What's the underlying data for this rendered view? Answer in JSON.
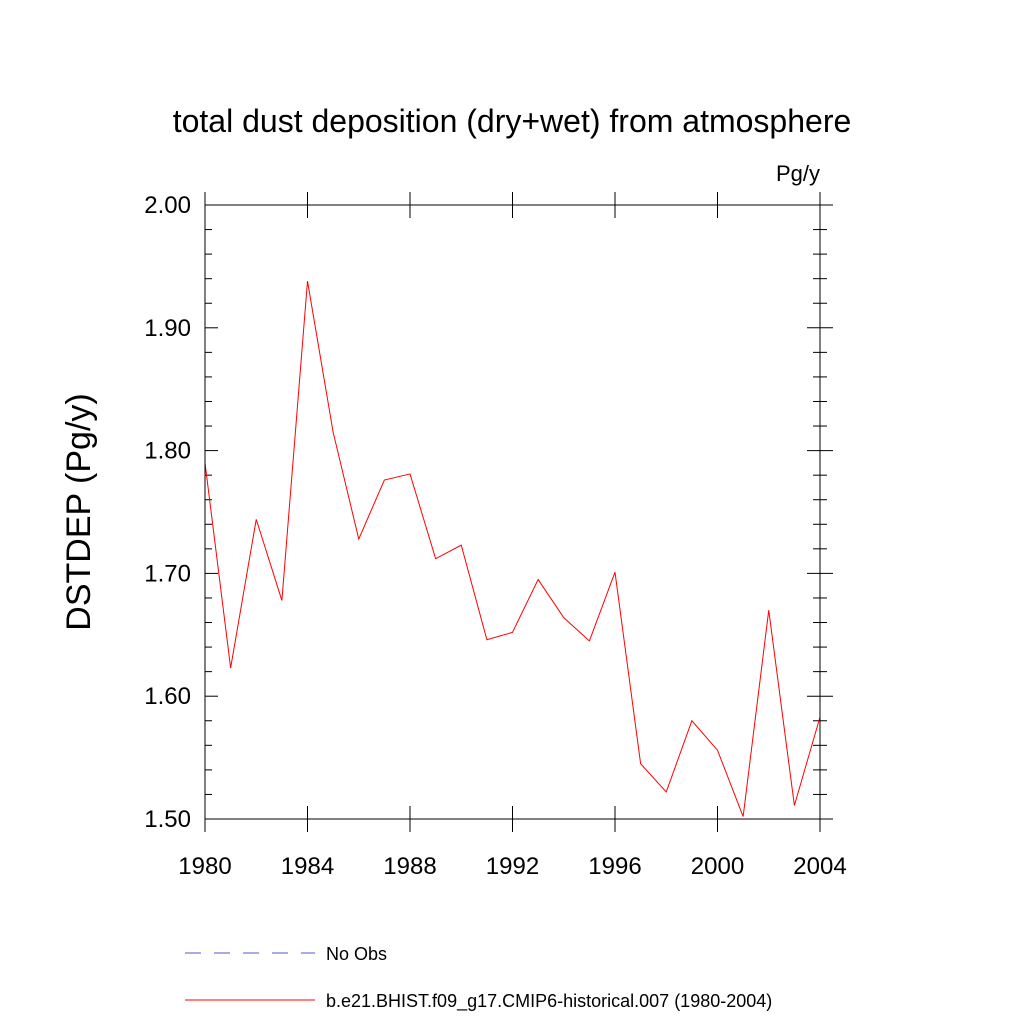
{
  "chart_data": {
    "type": "line",
    "title": "total dust deposition (dry+wet) from atmosphere",
    "units_label": "Pg/y",
    "xlabel": "",
    "ylabel": "DSTDEP  (Pg/y)",
    "xlim": [
      1980,
      2004
    ],
    "ylim": [
      1.5,
      2.0
    ],
    "x_ticks": [
      1980,
      1984,
      1988,
      1992,
      1996,
      2000,
      2004
    ],
    "x_tick_labels": [
      "1980",
      "1984",
      "1988",
      "1992",
      "1996",
      "2000",
      "2004"
    ],
    "y_ticks": [
      1.5,
      1.6,
      1.7,
      1.8,
      1.9,
      2.0
    ],
    "y_tick_labels": [
      "1.50",
      "1.60",
      "1.70",
      "1.80",
      "1.90",
      "2.00"
    ],
    "grid": false,
    "legend_position": "bottom",
    "series": [
      {
        "name": "b.e21.BHIST.f09_g17.CMIP6-historical.007 (1980-2004)",
        "color": "#ff0000",
        "style": "solid",
        "x": [
          1980,
          1981,
          1982,
          1983,
          1984,
          1985,
          1986,
          1987,
          1988,
          1989,
          1990,
          1991,
          1992,
          1993,
          1994,
          1995,
          1996,
          1997,
          1998,
          1999,
          2000,
          2001,
          2002,
          2003,
          2004
        ],
        "values": [
          1.79,
          1.623,
          1.744,
          1.678,
          1.938,
          1.815,
          1.728,
          1.776,
          1.781,
          1.712,
          1.723,
          1.646,
          1.652,
          1.695,
          1.664,
          1.645,
          1.701,
          1.545,
          1.522,
          1.58,
          1.556,
          1.502,
          1.67,
          1.511,
          1.583
        ]
      },
      {
        "name": "No Obs",
        "color": "#5555cc",
        "style": "dashed",
        "x": [],
        "values": []
      }
    ],
    "legend": [
      {
        "label": "No Obs",
        "color": "#5555cc",
        "style": "dashed"
      },
      {
        "label": "b.e21.BHIST.f09_g17.CMIP6-historical.007 (1980-2004)",
        "color": "#ff0000",
        "style": "solid"
      }
    ]
  }
}
